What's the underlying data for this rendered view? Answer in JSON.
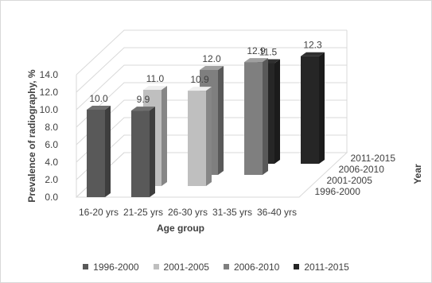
{
  "chart_data": {
    "type": "bar",
    "subtype": "3d-column",
    "xlabel": "Age group",
    "ylabel": "Prevalence of radiography, %",
    "zlabel": "Year",
    "categories": [
      "16-20 yrs",
      "21-25 yrs",
      "26-30 yrs",
      "31-35 yrs",
      "36-40 yrs"
    ],
    "y_ticks": [
      "0.0",
      "2.0",
      "4.0",
      "6.0",
      "8.0",
      "10.0",
      "12.0",
      "14.0"
    ],
    "ylim": [
      0,
      14
    ],
    "series": [
      {
        "name": "1996-2000",
        "color": "#595959",
        "values": [
          10.0,
          9.9,
          null,
          null,
          null
        ],
        "labels": [
          "10.0",
          "9.9",
          "",
          "",
          ""
        ]
      },
      {
        "name": "2001-2005",
        "color": "#bfbfbf",
        "values": [
          null,
          11.0,
          10.9,
          null,
          null
        ],
        "labels": [
          "",
          "11.0",
          "10.9",
          "",
          ""
        ]
      },
      {
        "name": "2006-2010",
        "color": "#7f7f7f",
        "values": [
          null,
          null,
          12.0,
          12.9,
          null
        ],
        "labels": [
          "",
          "",
          "12.0",
          "12.9",
          ""
        ]
      },
      {
        "name": "2011-2015",
        "color": "#262626",
        "values": [
          null,
          null,
          null,
          11.5,
          12.3
        ],
        "labels": [
          "",
          "",
          "",
          "11.5",
          "12.3"
        ]
      }
    ],
    "depth_axis_labels": [
      "1996-2000",
      "2001-2005",
      "2006-2010",
      "2011-2015"
    ],
    "legend_position": "bottom",
    "grid": true
  }
}
